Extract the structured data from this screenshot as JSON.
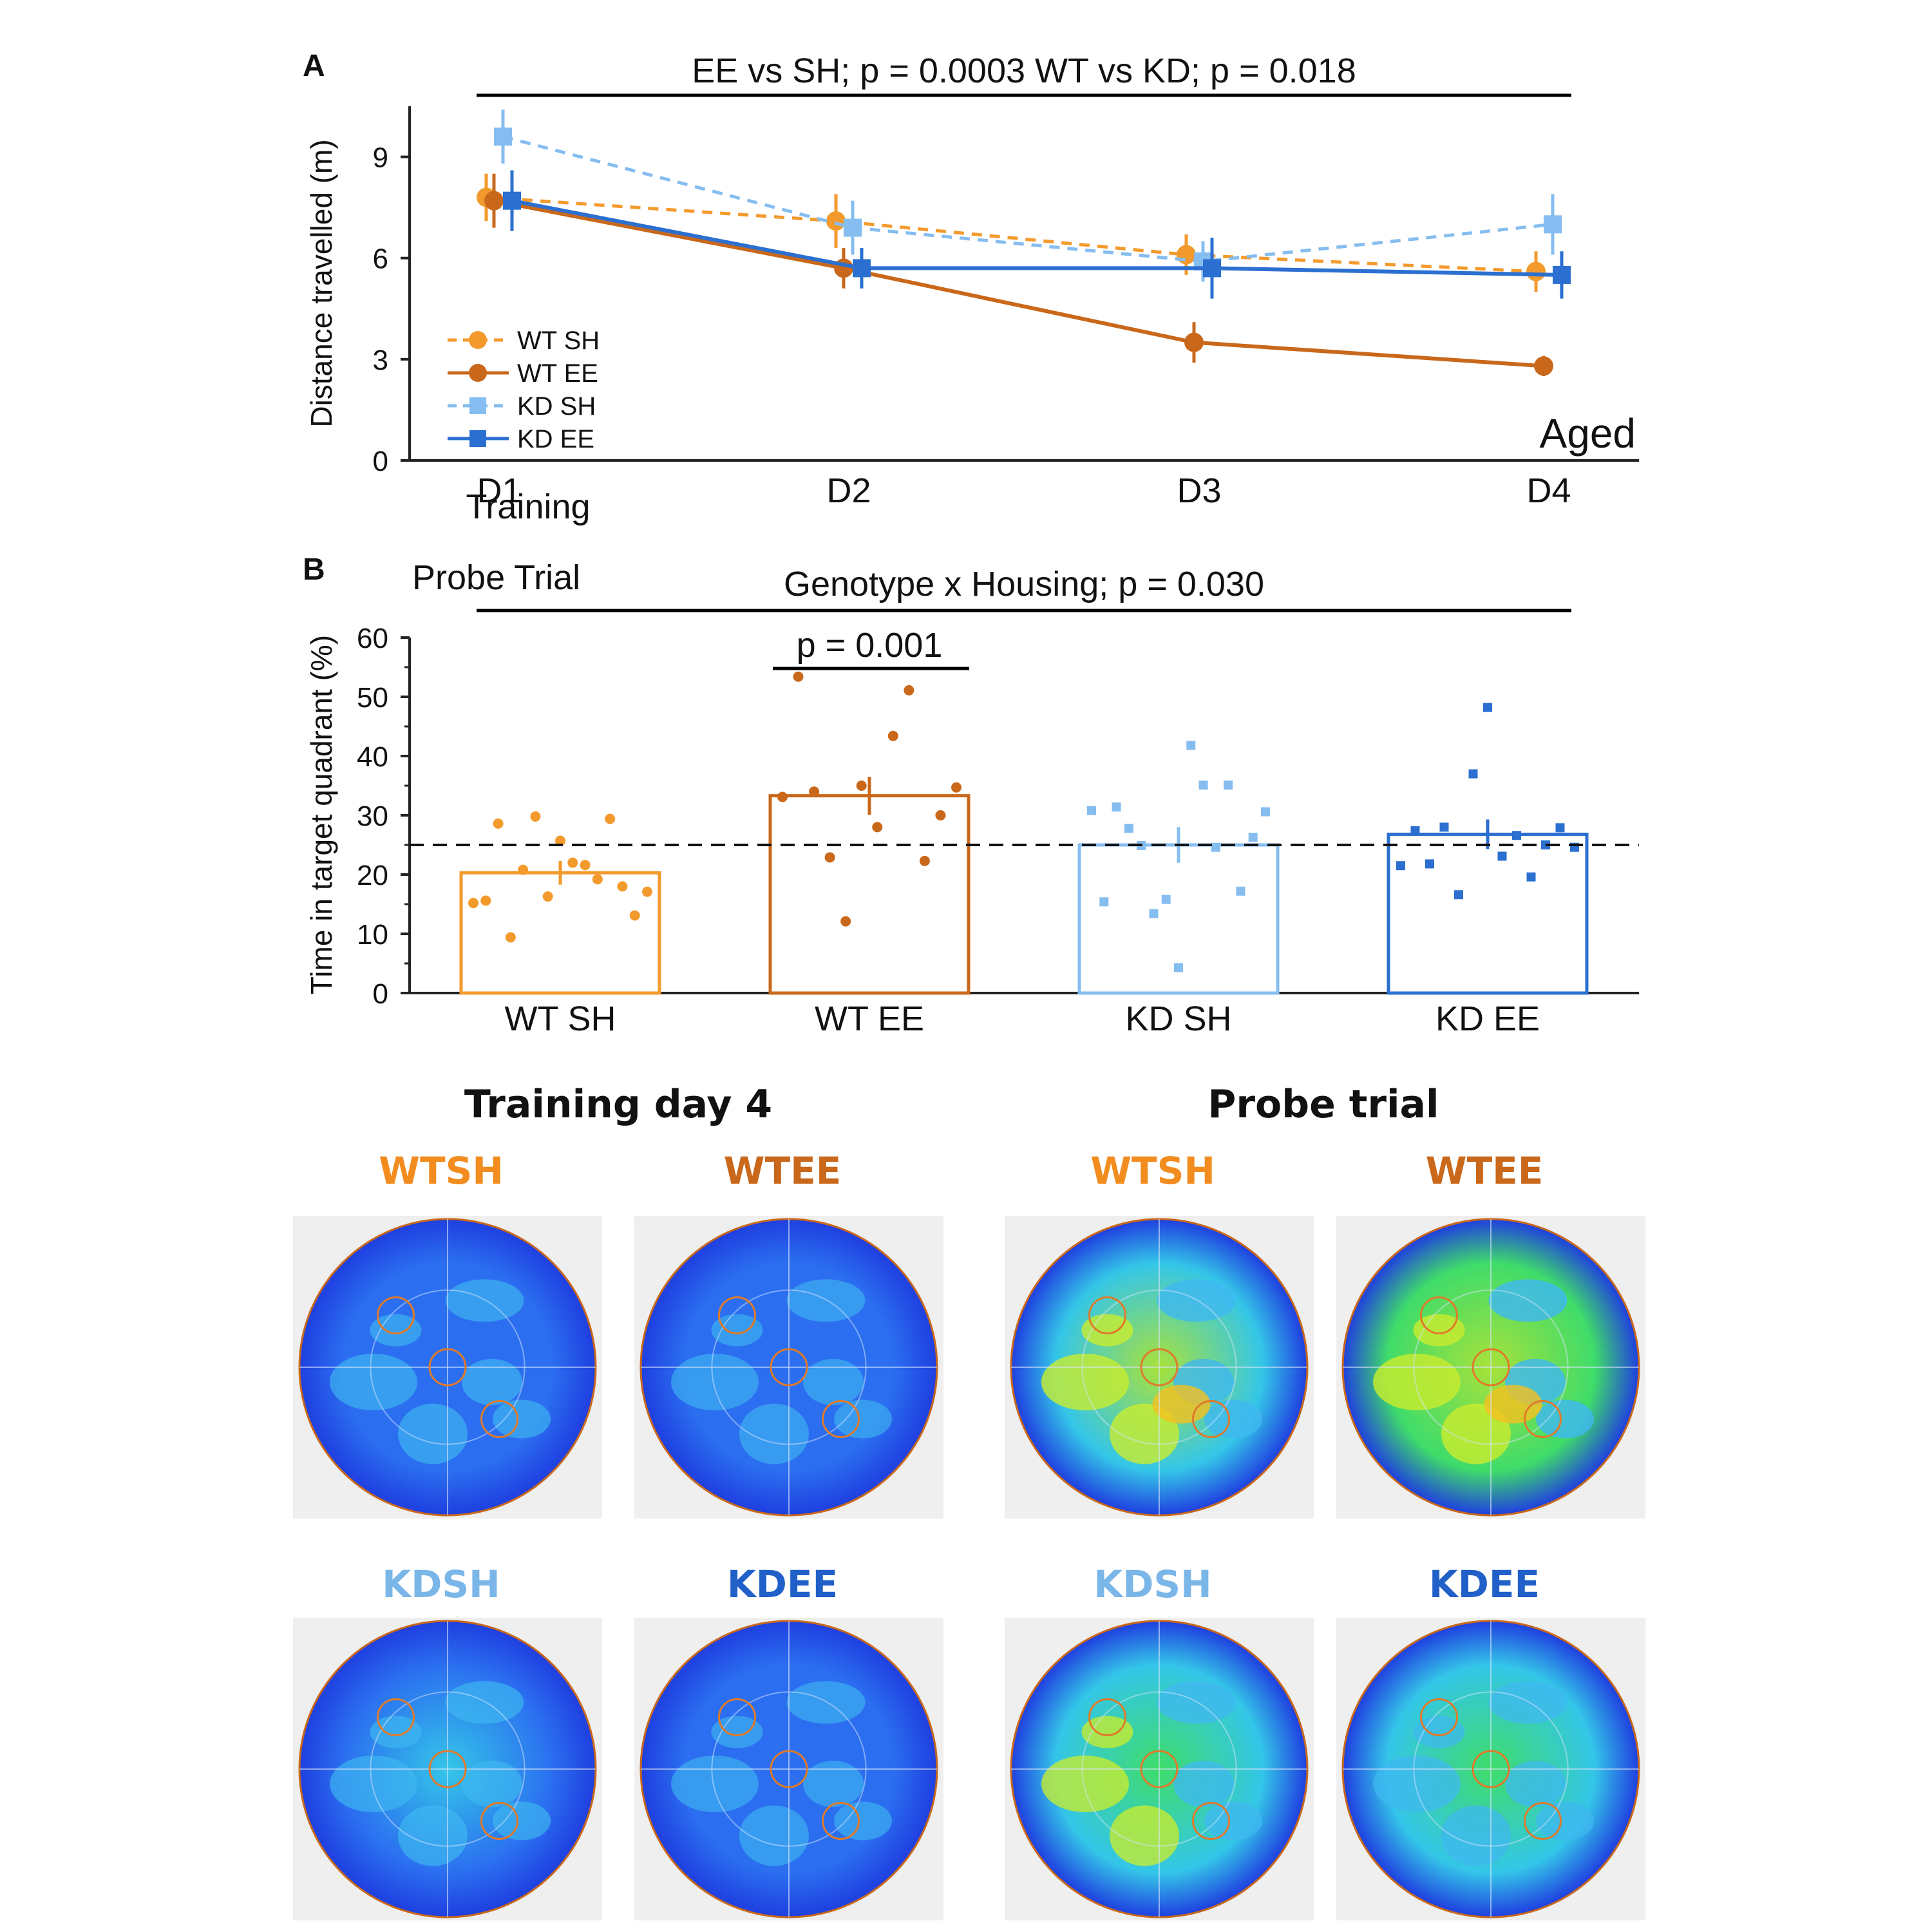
{
  "panel_a": {
    "label": "A",
    "stats": "EE vs SH; p = 0.0003  WT vs KD; p = 0.018",
    "corner_label": "Aged"
  },
  "panel_b": {
    "label": "B",
    "subtitle": "Probe Trial",
    "stats": "Genotype x Housing; p = 0.030",
    "pairwise": "p = 0.001"
  },
  "heatmaps": {
    "training_title": "Training day 4",
    "probe_title": "Probe trial",
    "panels": [
      {
        "label": "WTSH",
        "color": "#f28c1f",
        "heat": 0.3
      },
      {
        "label": "WTEE",
        "color": "#c9681b",
        "heat": 0.15
      },
      {
        "label": "WTSH",
        "color": "#f28c1f",
        "heat": 0.85
      },
      {
        "label": "WTEE",
        "color": "#c9681b",
        "heat": 0.9
      },
      {
        "label": "KDSH",
        "color": "#7ab6e8",
        "heat": 0.35
      },
      {
        "label": "KDEE",
        "color": "#2060c8",
        "heat": 0.2
      },
      {
        "label": "KDSH",
        "color": "#7ab6e8",
        "heat": 0.75
      },
      {
        "label": "KDEE",
        "color": "#2060c8",
        "heat": 0.6
      }
    ]
  },
  "chart_data": [
    {
      "type": "line",
      "xlabel": "Training",
      "ylabel": "Distance travelled (m)",
      "categories": [
        "D1",
        "D2",
        "D3",
        "D4"
      ],
      "ylim": [
        0,
        10.5
      ],
      "yticks": [
        0,
        3,
        6,
        9
      ],
      "legend_position": "bottom-left",
      "series": [
        {
          "name": "WT SH",
          "color": "#f39a2d",
          "dashed": true,
          "marker": "circle",
          "values": [
            7.8,
            7.1,
            6.1,
            5.6
          ],
          "err": [
            0.7,
            0.8,
            0.6,
            0.6
          ]
        },
        {
          "name": "WT EE",
          "color": "#c9681b",
          "dashed": false,
          "marker": "circle",
          "values": [
            7.7,
            5.7,
            3.5,
            2.8
          ],
          "err": [
            0.8,
            0.6,
            0.6,
            0.3
          ]
        },
        {
          "name": "KD SH",
          "color": "#86bdf0",
          "dashed": true,
          "marker": "square",
          "values": [
            9.6,
            6.9,
            5.9,
            7.0
          ],
          "err": [
            0.8,
            0.8,
            0.6,
            0.9
          ]
        },
        {
          "name": "KD EE",
          "color": "#2b6fd1",
          "dashed": false,
          "marker": "square",
          "values": [
            7.7,
            5.7,
            5.7,
            5.5
          ],
          "err": [
            0.9,
            0.6,
            0.9,
            0.7
          ]
        }
      ]
    },
    {
      "type": "bar",
      "ylabel": "Time in target quadrant (%)",
      "categories": [
        "WT SH",
        "WT EE",
        "KD SH",
        "KD EE"
      ],
      "ylim": [
        0,
        60
      ],
      "yticks": [
        0,
        10,
        20,
        30,
        40,
        50,
        60
      ],
      "chance_level": 25,
      "values": [
        20.3,
        33.3,
        25.0,
        26.8
      ],
      "err": [
        2.0,
        3.2,
        3.0,
        2.5
      ],
      "colors": [
        "#f39a2d",
        "#c9681b",
        "#86bdf0",
        "#2b6fd1"
      ],
      "points": [
        [
          15.2,
          15.6,
          28.6,
          9.4,
          20.8,
          29.8,
          16.3,
          25.7,
          22.0,
          21.6,
          19.2,
          29.4,
          18.0,
          13.1,
          17.1
        ],
        [
          33.1,
          53.4,
          34.0,
          22.9,
          12.1,
          35.0,
          28.0,
          43.4,
          51.1,
          22.3,
          30.0,
          34.7
        ],
        [
          30.8,
          15.4,
          31.4,
          27.8,
          24.9,
          13.4,
          15.8,
          4.3,
          41.8,
          35.1,
          24.6,
          35.1,
          17.2,
          26.3,
          30.6
        ],
        [
          21.5,
          27.4,
          21.8,
          28.0,
          16.6,
          37.0,
          48.2,
          23.1,
          26.6,
          19.6,
          25.0,
          27.9,
          24.6
        ]
      ]
    }
  ]
}
